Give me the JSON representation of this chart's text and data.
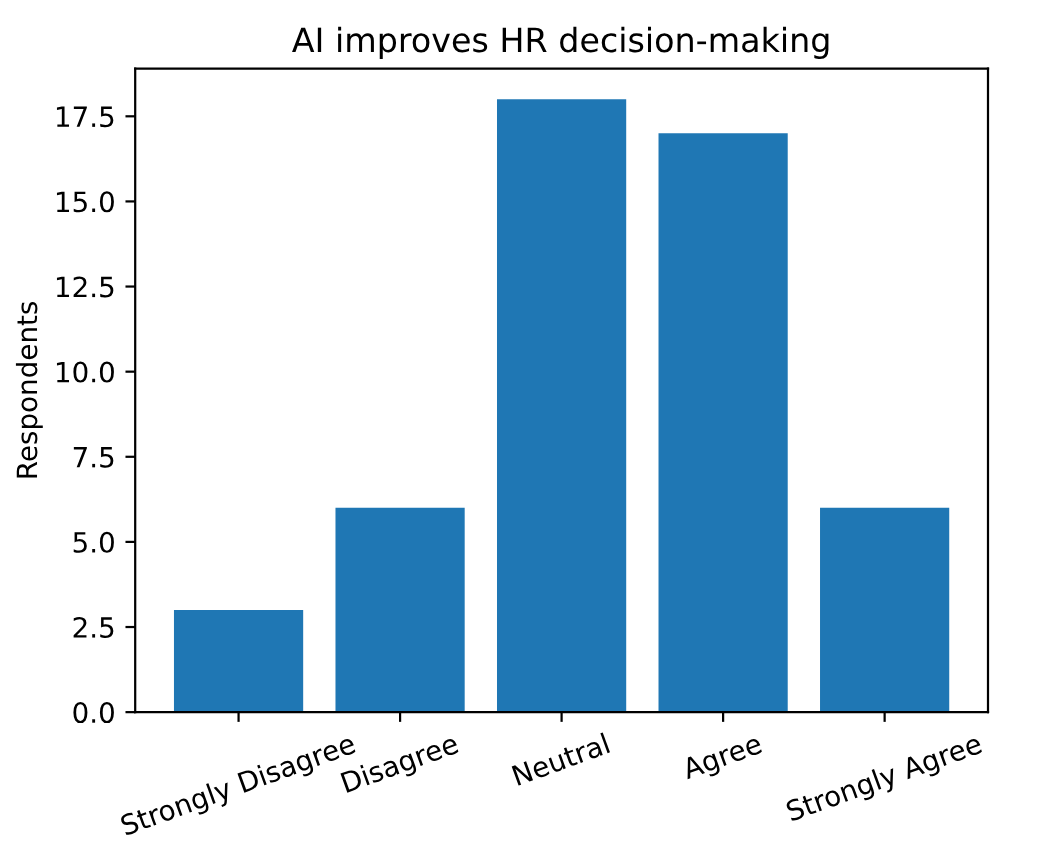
{
  "chart_data": {
    "type": "bar",
    "title": "AI improves HR decision-making",
    "ylabel": "Respondents",
    "categories": [
      "Strongly Disagree",
      "Disagree",
      "Neutral",
      "Agree",
      "Strongly Agree"
    ],
    "values": [
      3,
      6,
      18,
      17,
      6
    ],
    "color": "#1f77b4",
    "ylim": [
      0,
      18.9
    ],
    "yticks": [
      {
        "value": 0,
        "label": "0.0"
      },
      2.5,
      {
        "value": 5,
        "label": "5.0"
      },
      7.5,
      {
        "value": 10,
        "label": "10.0"
      },
      12.5,
      {
        "value": 15,
        "label": "15.0"
      },
      17.5
    ],
    "grid": false
  }
}
